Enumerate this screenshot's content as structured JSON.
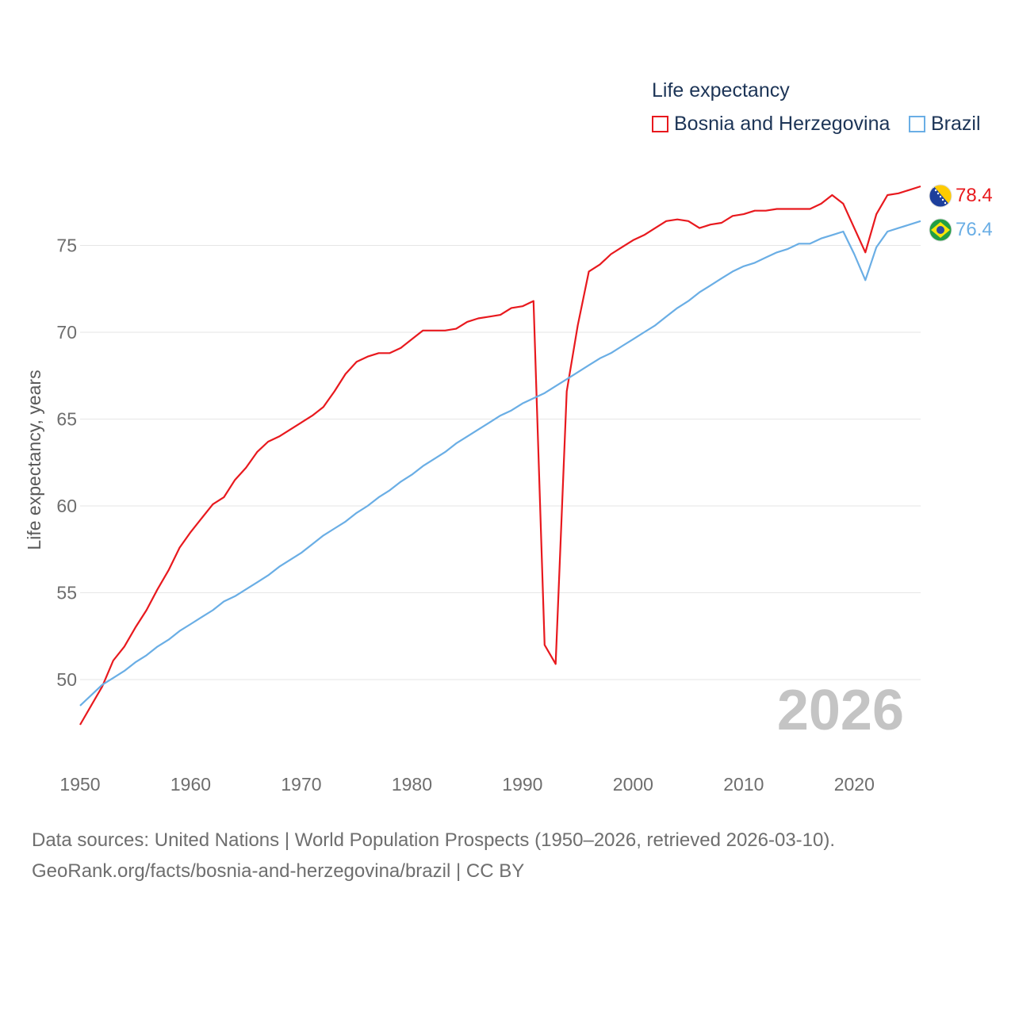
{
  "legend": {
    "title": "Life expectancy",
    "items": [
      {
        "label": "Bosnia and Herzegovina",
        "color": "#e8191e"
      },
      {
        "label": "Brazil",
        "color": "#6aaee5"
      }
    ]
  },
  "footer": {
    "line1": "Data sources: United Nations | World Population Prospects (1950–2026, retrieved 2026-03-10).",
    "line2": "GeoRank.org/facts/bosnia-and-herzegovina/brazil | CC BY"
  },
  "chart_data": {
    "type": "line",
    "title": "Life expectancy",
    "xlabel": "",
    "ylabel": "Life expectancy, years",
    "xlim": [
      1950,
      2026
    ],
    "ylim": [
      45.3,
      80
    ],
    "xticks": [
      1950,
      1960,
      1970,
      1980,
      1990,
      2000,
      2010,
      2020
    ],
    "yticks": [
      50,
      55,
      60,
      65,
      70,
      75
    ],
    "grid": true,
    "year_label": "2026",
    "series": [
      {
        "name": "Bosnia and Herzegovina",
        "color": "#e8191e",
        "end_label": "78.4",
        "flag_icon": "bosnia-flag-icon",
        "x": [
          1950,
          1951,
          1952,
          1953,
          1954,
          1955,
          1956,
          1957,
          1958,
          1959,
          1960,
          1961,
          1962,
          1963,
          1964,
          1965,
          1966,
          1967,
          1968,
          1969,
          1970,
          1971,
          1972,
          1973,
          1974,
          1975,
          1976,
          1977,
          1978,
          1979,
          1980,
          1981,
          1982,
          1983,
          1984,
          1985,
          1986,
          1987,
          1988,
          1989,
          1990,
          1991,
          1992,
          1993,
          1994,
          1995,
          1996,
          1997,
          1998,
          1999,
          2000,
          2001,
          2002,
          2003,
          2004,
          2005,
          2006,
          2007,
          2008,
          2009,
          2010,
          2011,
          2012,
          2013,
          2014,
          2015,
          2016,
          2017,
          2018,
          2019,
          2020,
          2021,
          2022,
          2023,
          2024,
          2025,
          2026
        ],
        "y": [
          47.4,
          48.5,
          49.6,
          51.1,
          51.9,
          53.0,
          54.0,
          55.2,
          56.3,
          57.6,
          58.5,
          59.3,
          60.1,
          60.5,
          61.5,
          62.2,
          63.1,
          63.7,
          64.0,
          64.4,
          64.8,
          65.2,
          65.7,
          66.6,
          67.6,
          68.3,
          68.6,
          68.8,
          68.8,
          69.1,
          69.6,
          70.1,
          70.1,
          70.1,
          70.2,
          70.6,
          70.8,
          70.9,
          71.0,
          71.4,
          71.5,
          71.8,
          52.0,
          50.9,
          66.6,
          70.4,
          73.5,
          73.9,
          74.5,
          74.9,
          75.3,
          75.6,
          76.0,
          76.4,
          76.5,
          76.4,
          76.0,
          76.2,
          76.3,
          76.7,
          76.8,
          77.0,
          77.0,
          77.1,
          77.1,
          77.1,
          77.1,
          77.4,
          77.9,
          77.4,
          76.0,
          74.6,
          76.8,
          77.9,
          78.0,
          78.2,
          78.4
        ]
      },
      {
        "name": "Brazil",
        "color": "#6aaee5",
        "end_label": "76.4",
        "flag_icon": "brazil-flag-icon",
        "x": [
          1950,
          1951,
          1952,
          1953,
          1954,
          1955,
          1956,
          1957,
          1958,
          1959,
          1960,
          1961,
          1962,
          1963,
          1964,
          1965,
          1966,
          1967,
          1968,
          1969,
          1970,
          1971,
          1972,
          1973,
          1974,
          1975,
          1976,
          1977,
          1978,
          1979,
          1980,
          1981,
          1982,
          1983,
          1984,
          1985,
          1986,
          1987,
          1988,
          1989,
          1990,
          1991,
          1992,
          1993,
          1994,
          1995,
          1996,
          1997,
          1998,
          1999,
          2000,
          2001,
          2002,
          2003,
          2004,
          2005,
          2006,
          2007,
          2008,
          2009,
          2010,
          2011,
          2012,
          2013,
          2014,
          2015,
          2016,
          2017,
          2018,
          2019,
          2020,
          2021,
          2022,
          2023,
          2024,
          2025,
          2026
        ],
        "y": [
          48.5,
          49.1,
          49.7,
          50.1,
          50.5,
          51.0,
          51.4,
          51.9,
          52.3,
          52.8,
          53.2,
          53.6,
          54.0,
          54.5,
          54.8,
          55.2,
          55.6,
          56.0,
          56.5,
          56.9,
          57.3,
          57.8,
          58.3,
          58.7,
          59.1,
          59.6,
          60.0,
          60.5,
          60.9,
          61.4,
          61.8,
          62.3,
          62.7,
          63.1,
          63.6,
          64.0,
          64.4,
          64.8,
          65.2,
          65.5,
          65.9,
          66.2,
          66.5,
          66.9,
          67.3,
          67.7,
          68.1,
          68.5,
          68.8,
          69.2,
          69.6,
          70.0,
          70.4,
          70.9,
          71.4,
          71.8,
          72.3,
          72.7,
          73.1,
          73.5,
          73.8,
          74.0,
          74.3,
          74.6,
          74.8,
          75.1,
          75.1,
          75.4,
          75.6,
          75.8,
          74.5,
          73.0,
          74.9,
          75.8,
          76.0,
          76.2,
          76.4
        ]
      }
    ]
  }
}
